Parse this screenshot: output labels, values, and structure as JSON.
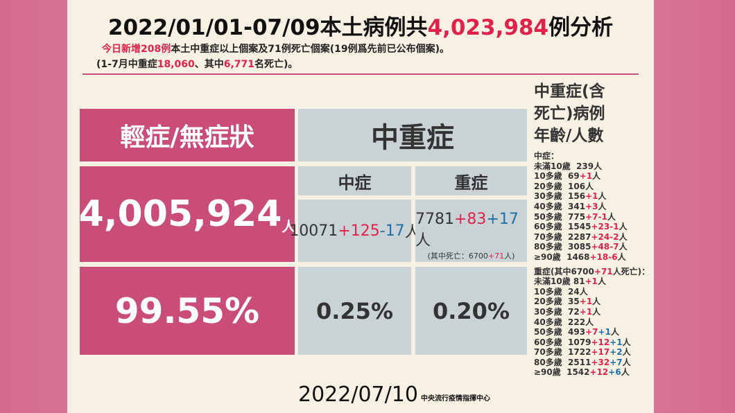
{
  "title": [
    {
      "text": "2022/01/01-07/09本土病例共"
    },
    {
      "text": "4,023,984",
      "color": "#e0224a"
    },
    {
      "text": "例分析"
    }
  ],
  "subtitle_lines": [
    [
      {
        "text": "今日新增208例",
        "color": "#e0224a"
      },
      {
        "text": "本土中重症以上個案及71例死亡個案(19例爲先前已公布個案)。"
      }
    ],
    [
      {
        "text": "(1-7月中重症"
      },
      {
        "text": "18,060",
        "color": "#e0224a"
      },
      {
        "text": "、其中"
      },
      {
        "text": "6,771",
        "color": "#e0224a"
      },
      {
        "text": "名死亡)。"
      }
    ]
  ],
  "table": {
    "mild_header": "輕症/無症狀",
    "severe_header": "中重症",
    "moderate_header": "中症",
    "critical_header": "重症",
    "mild_count": "4,005,924",
    "mild_unit": "人",
    "moderate_count": [
      {
        "text": "10071"
      },
      {
        "text": "+125",
        "color": "#e0224a"
      },
      {
        "text": "-17",
        "color": "#1f6fa8"
      },
      {
        "text": "人"
      }
    ],
    "critical_count": [
      {
        "text": "7781"
      },
      {
        "text": "+83",
        "color": "#e0224a"
      },
      {
        "text": "+17",
        "color": "#1f6fa8"
      },
      {
        "text": " 人"
      }
    ],
    "critical_note": [
      {
        "text": "(其中死亡：6700"
      },
      {
        "text": "+71",
        "color": "#e0224a"
      },
      {
        "text": "人)"
      }
    ],
    "mild_percent": "99.55%",
    "moderate_percent": "0.25%",
    "critical_percent": "0.20%"
  },
  "age_panel": {
    "heading": [
      "中重症(含",
      "死亡)病例",
      "年齡/人數"
    ],
    "moderate_label": [
      {
        "text": "中症："
      }
    ],
    "moderate_rows": [
      [
        {
          "text": "未滿10歲  239人"
        }
      ],
      [
        {
          "text": "10多歲  69"
        },
        {
          "text": "+1",
          "color": "#e0224a"
        },
        {
          "text": "人"
        }
      ],
      [
        {
          "text": "20多歲  106人"
        }
      ],
      [
        {
          "text": "30多歲  156"
        },
        {
          "text": "+1",
          "color": "#e0224a"
        },
        {
          "text": "人"
        }
      ],
      [
        {
          "text": "40多歲  341"
        },
        {
          "text": "+3",
          "color": "#e0224a"
        },
        {
          "text": "人"
        }
      ],
      [
        {
          "text": "50多歲  775"
        },
        {
          "text": "+7-1",
          "color": "#e0224a"
        },
        {
          "text": "人"
        }
      ],
      [
        {
          "text": "60多歲  1545"
        },
        {
          "text": "+23-1",
          "color": "#e0224a"
        },
        {
          "text": "人"
        }
      ],
      [
        {
          "text": "70多歲  2287"
        },
        {
          "text": "+24-2",
          "color": "#e0224a"
        },
        {
          "text": "人"
        }
      ],
      [
        {
          "text": "80多歲  3085"
        },
        {
          "text": "+48-7",
          "color": "#e0224a"
        },
        {
          "text": "人"
        }
      ],
      [
        {
          "text": "≥90歲  1468"
        },
        {
          "text": "+18-6",
          "color": "#e0224a"
        },
        {
          "text": "人"
        }
      ]
    ],
    "critical_label": [
      {
        "text": "重症(其中6700"
      },
      {
        "text": "+71",
        "color": "#e0224a"
      },
      {
        "text": "人死亡)："
      }
    ],
    "critical_rows": [
      [
        {
          "text": "未滿10歲 81"
        },
        {
          "text": "+1",
          "color": "#e0224a"
        },
        {
          "text": "人"
        }
      ],
      [
        {
          "text": "10多歲  24人"
        }
      ],
      [
        {
          "text": "20多歲  35"
        },
        {
          "text": "+1",
          "color": "#e0224a"
        },
        {
          "text": "人"
        }
      ],
      [
        {
          "text": "30多歲  72"
        },
        {
          "text": "+1",
          "color": "#e0224a"
        },
        {
          "text": "人"
        }
      ],
      [
        {
          "text": "40多歲  222人"
        }
      ],
      [
        {
          "text": "50多歲  493"
        },
        {
          "text": "+7",
          "color": "#e0224a"
        },
        {
          "text": "+1",
          "color": "#1f6fa8"
        },
        {
          "text": "人"
        }
      ],
      [
        {
          "text": "60多歲  1079"
        },
        {
          "text": "+12",
          "color": "#e0224a"
        },
        {
          "text": "+1",
          "color": "#1f6fa8"
        },
        {
          "text": "人"
        }
      ],
      [
        {
          "text": "70多歲  1722"
        },
        {
          "text": "+17",
          "color": "#e0224a"
        },
        {
          "text": "+2",
          "color": "#1f6fa8"
        },
        {
          "text": "人"
        }
      ],
      [
        {
          "text": "80多歲  2511"
        },
        {
          "text": "+32",
          "color": "#e0224a"
        },
        {
          "text": "+7",
          "color": "#1f6fa8"
        },
        {
          "text": "人"
        }
      ],
      [
        {
          "text": "≥90歲  1542"
        },
        {
          "text": "+12",
          "color": "#e0224a"
        },
        {
          "text": "+6",
          "color": "#1f6fa8"
        },
        {
          "text": "人"
        }
      ]
    ]
  },
  "footer": {
    "date": "2022/07/10",
    "source": "中央流行疫情指揮中心"
  }
}
